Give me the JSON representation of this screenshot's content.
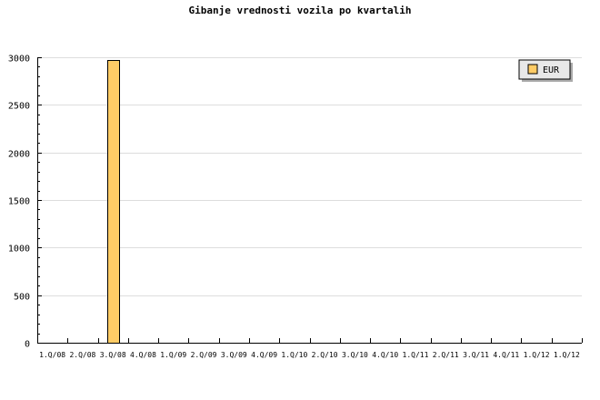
{
  "chart_data": {
    "type": "bar",
    "title": "Gibanje vrednosti vozila po kvartalih",
    "xlabel": "",
    "ylabel": "",
    "categories": [
      "1.Q/08",
      "2.Q/08",
      "3.Q/08",
      "4.Q/08",
      "1.Q/09",
      "2.Q/09",
      "3.Q/09",
      "4.Q/09",
      "1.Q/10",
      "2.Q/10",
      "3.Q/10",
      "4.Q/10",
      "1.Q/11",
      "2.Q/11",
      "3.Q/11",
      "4.Q/11",
      "1.Q/12",
      "1.Q/12"
    ],
    "series": [
      {
        "name": "EUR",
        "color": "#ffcc66",
        "values": [
          0,
          0,
          2975,
          0,
          0,
          0,
          0,
          0,
          0,
          0,
          0,
          0,
          0,
          0,
          0,
          0,
          0,
          0
        ]
      }
    ],
    "ylim": [
      0,
      3000
    ],
    "yticks": [
      0,
      500,
      1000,
      1500,
      2000,
      2500,
      3000
    ],
    "grid": true,
    "legend": "top-right"
  }
}
